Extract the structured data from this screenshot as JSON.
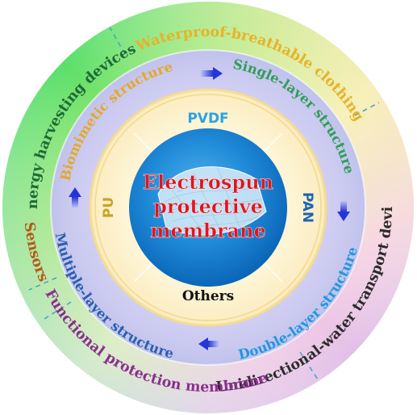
{
  "center": {
    "lines": [
      "Electrospun",
      "protective",
      "membrane"
    ],
    "text_color": "#e3141c"
  },
  "materials": {
    "top": "PVDF",
    "right": "PAN",
    "left": "PU",
    "bottom": "Others"
  },
  "structures": {
    "biomimetic": "Biomimetic structure",
    "single_layer": "Single-layer structure",
    "double_layer": "Double-layer structure",
    "multiple_layer": "Multiple-layer structure"
  },
  "applications": {
    "waterproof": "Waterproof-breathable clothing",
    "unidirectional": "Unidirectional-water transport devices",
    "functional": "Functional protection membrane",
    "sensors": "Sensors",
    "energy": "Energy harvesting devices"
  },
  "colors": {
    "pvdf": "#29a3e0",
    "pan": "#1e63b5",
    "pu": "#c9a227",
    "others": "#111111",
    "biomimetic": "#e3a92a",
    "single_layer": "#2f9e58",
    "double_layer": "#2196e0",
    "multiple_layer": "#2a5fb0",
    "waterproof": "#e7b327",
    "unidirectional": "#2c2c2c",
    "functional": "#8b2f8f",
    "sensors": "#b45a1a",
    "energy": "#1f6a38"
  }
}
